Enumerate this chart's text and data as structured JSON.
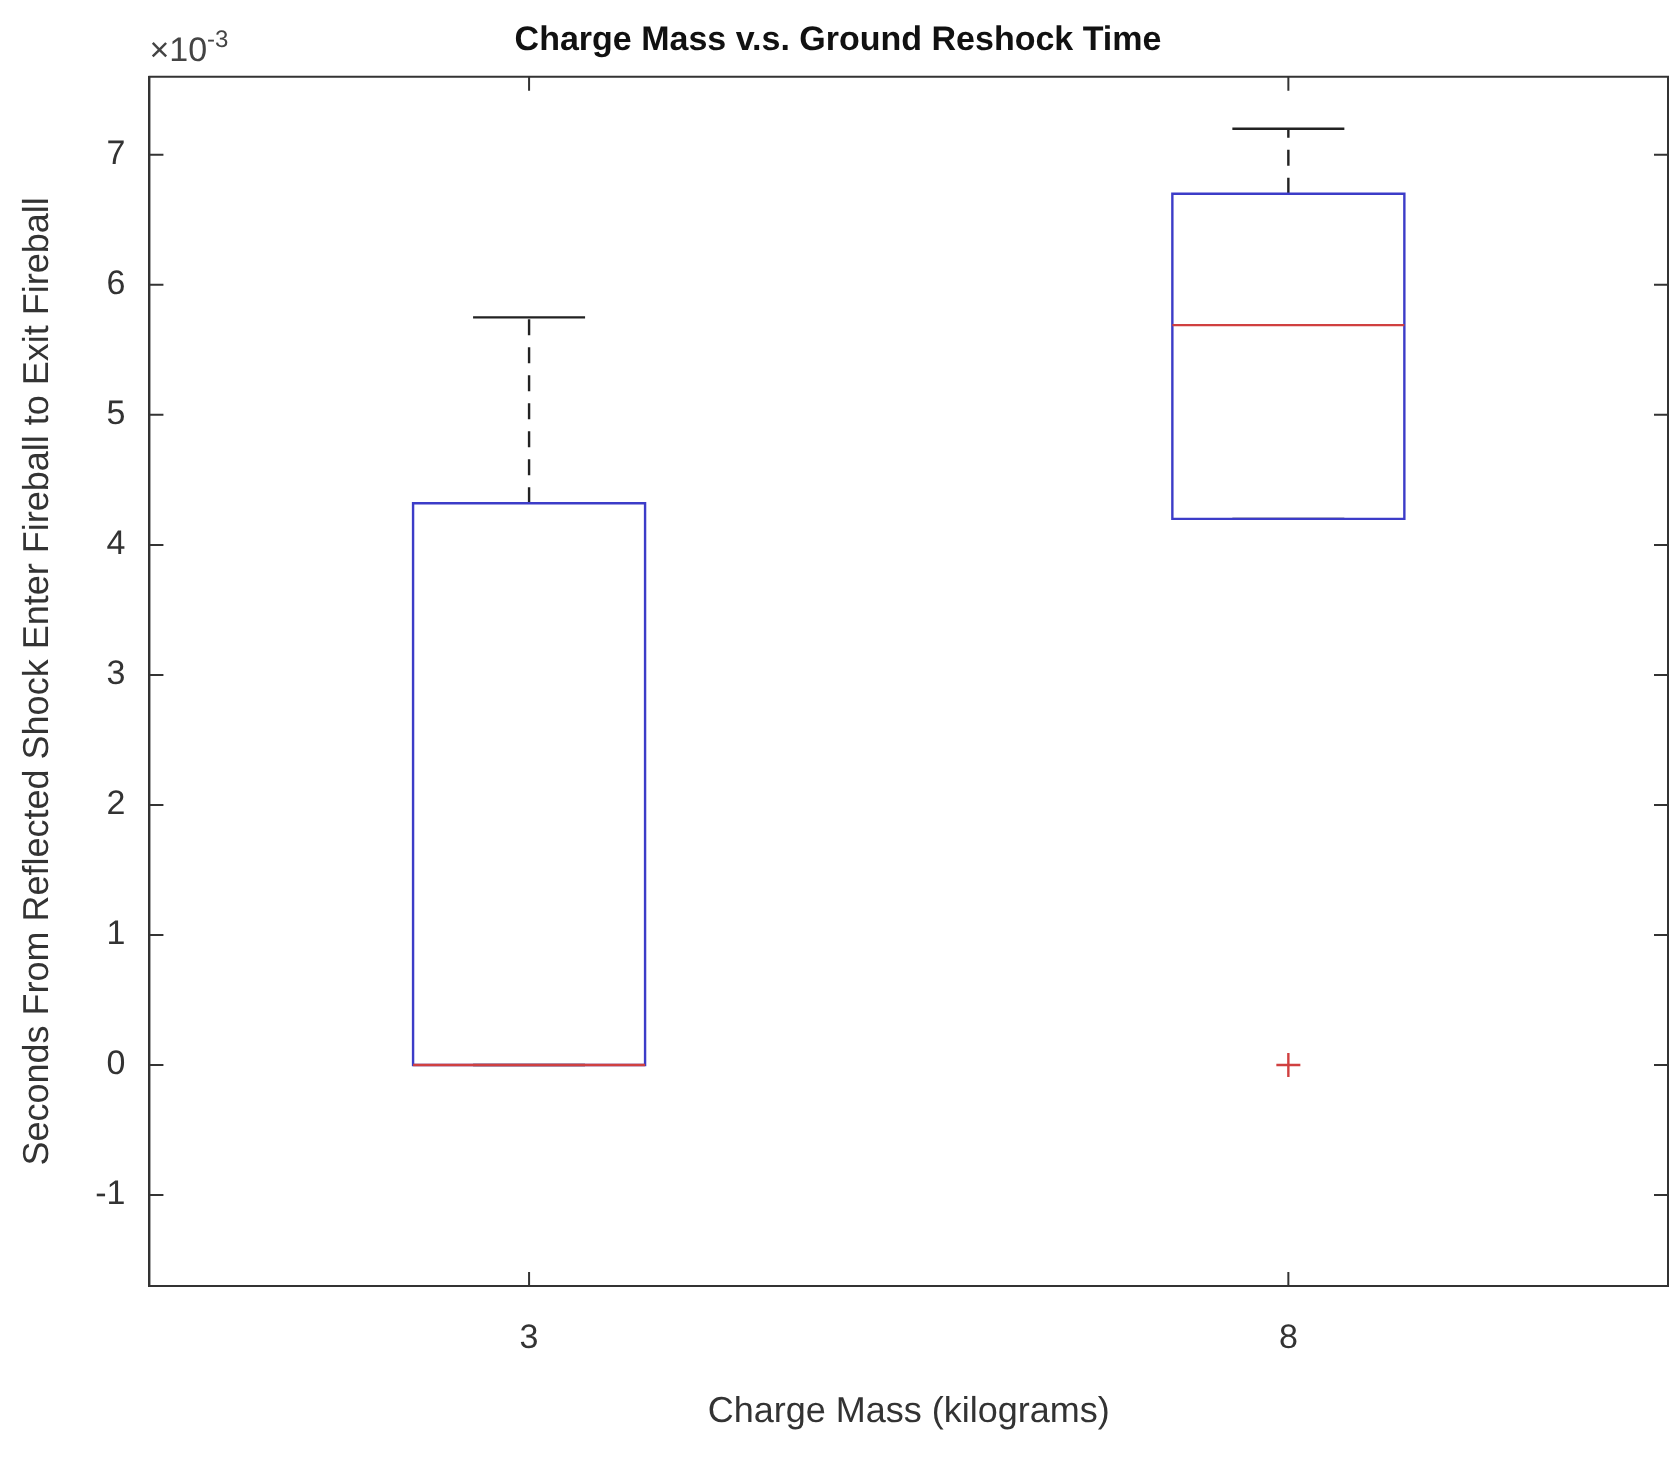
{
  "chart_data": {
    "type": "box",
    "title": "Charge Mass v.s. Ground Reshock Time",
    "xlabel": "Charge Mass (kilograms)",
    "ylabel": "Seconds From Reflected Shock Enter Fireball to Exit Fireball",
    "annotations": [
      "×10$^{-3}$"
    ],
    "categories": [
      "3",
      "8"
    ],
    "series": [
      {
        "color": "#3c3cc8",
        "boxes": [
          {
            "low": 0,
            "q1": 0,
            "median": 0,
            "q3": 4.32,
            "high": 5.75
          },
          {
            "low": 4.2,
            "q1": 4.2,
            "median": 5.69,
            "q3": 6.7,
            "high": 7.2,
            "outliers": [
              0
            ]
          }
        ]
      }
    ],
    "ylim": [
      -1.7,
      7.6
    ],
    "yticks": [
      -1,
      0,
      1,
      2,
      3,
      4,
      5,
      6,
      7
    ],
    "grid": false,
    "legend": false
  }
}
